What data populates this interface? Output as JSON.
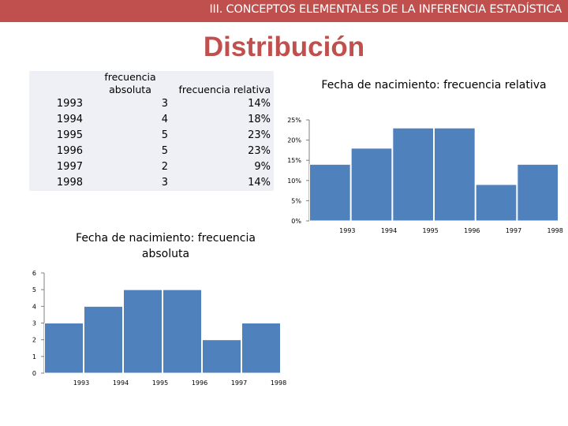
{
  "header": {
    "title": "III. CONCEPTOS ELEMENTALES DE LA INFERENCIA ESTADÍSTICA"
  },
  "slide": {
    "title": "Distribución"
  },
  "table": {
    "col_abs": "frecuencia absoluta",
    "col_rel": "frecuencia relativa",
    "rows": [
      {
        "year": "1993",
        "abs": "3",
        "rel": "14%"
      },
      {
        "year": "1994",
        "abs": "4",
        "rel": "18%"
      },
      {
        "year": "1995",
        "abs": "5",
        "rel": "23%"
      },
      {
        "year": "1996",
        "abs": "5",
        "rel": "23%"
      },
      {
        "year": "1997",
        "abs": "2",
        "rel": "9%"
      },
      {
        "year": "1998",
        "abs": "3",
        "rel": "14%"
      }
    ]
  },
  "chart_data": [
    {
      "type": "bar",
      "title": "Fecha de nacimiento: frecuencia relativa",
      "categories": [
        "1993",
        "1994",
        "1995",
        "1996",
        "1997",
        "1998"
      ],
      "values": [
        14,
        18,
        23,
        23,
        9,
        14
      ],
      "ylim": [
        0,
        25
      ],
      "yticks": [
        "0%",
        "5%",
        "10%",
        "15%",
        "20%",
        "25%"
      ],
      "color": "#4f81bd",
      "grid": false
    },
    {
      "type": "bar",
      "title": "Fecha de nacimiento: frecuencia absoluta",
      "categories": [
        "1993",
        "1994",
        "1995",
        "1996",
        "1997",
        "1998"
      ],
      "values": [
        3,
        4,
        5,
        5,
        2,
        3
      ],
      "ylim": [
        0,
        6
      ],
      "yticks": [
        "0",
        "1",
        "2",
        "3",
        "4",
        "5",
        "6"
      ],
      "color": "#4f81bd",
      "grid": false
    }
  ]
}
